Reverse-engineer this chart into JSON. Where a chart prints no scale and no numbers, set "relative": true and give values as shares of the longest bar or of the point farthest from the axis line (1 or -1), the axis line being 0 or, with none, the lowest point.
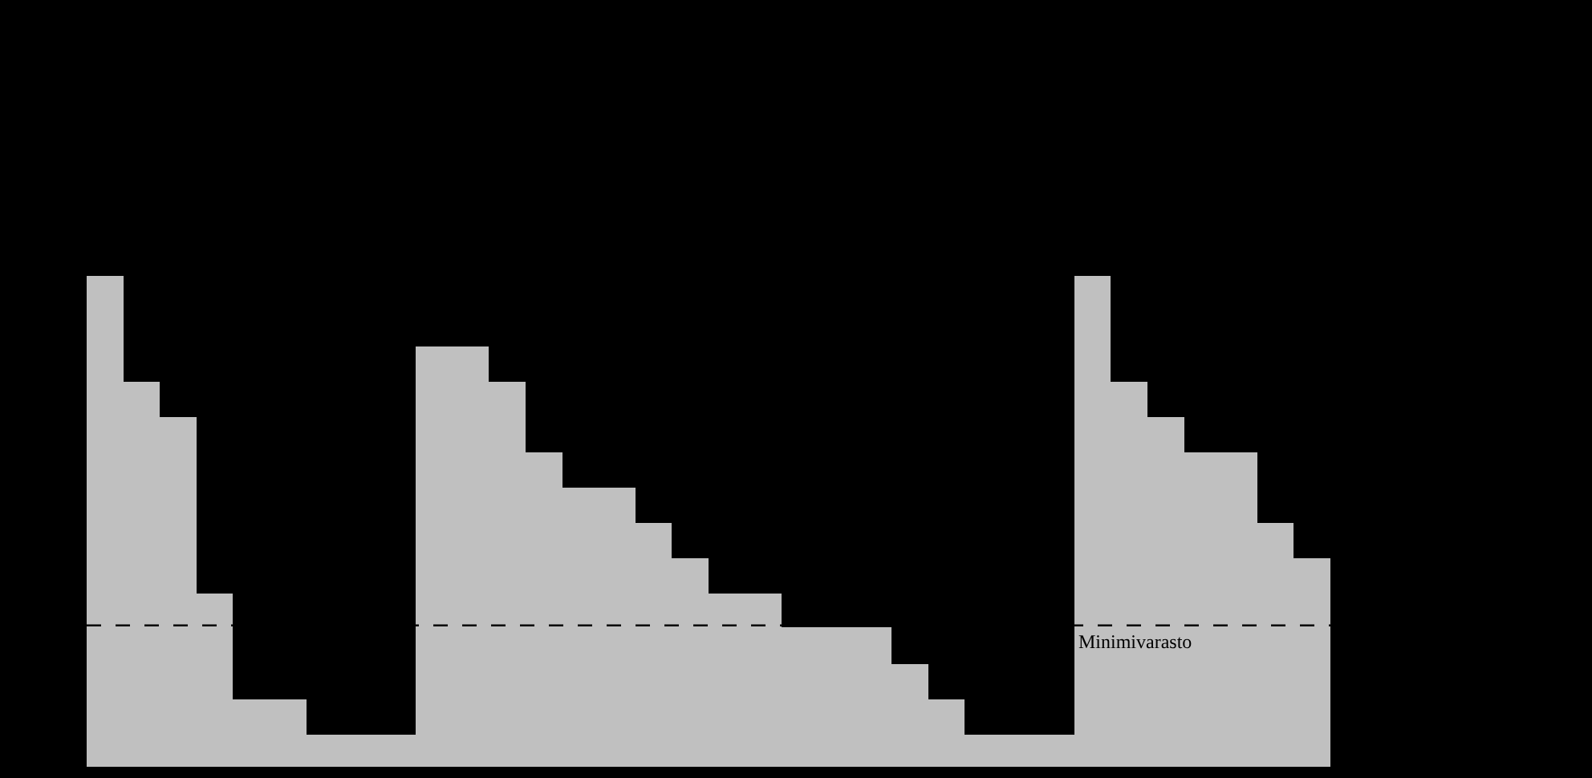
{
  "chart_data": {
    "type": "bar",
    "relative": true,
    "categories": [
      null,
      null,
      null,
      null,
      null,
      null,
      null,
      null,
      null,
      null,
      null,
      null,
      null,
      null,
      null,
      null,
      null,
      null,
      null,
      null,
      null,
      null,
      null,
      null,
      null,
      null,
      null,
      null,
      null,
      null,
      null,
      null,
      null,
      null
    ],
    "values": [
      1,
      0.784,
      0.712,
      0.353,
      0.137,
      0.137,
      0.065,
      0.065,
      0.065,
      0.856,
      0.856,
      0.784,
      0.641,
      0.569,
      0.569,
      0.497,
      0.425,
      0.353,
      0.353,
      0.284,
      0.284,
      0.284,
      0.209,
      0.137,
      0.065,
      0.065,
      0.065,
      1,
      0.784,
      0.712,
      0.641,
      0.641,
      0.497,
      0.425
    ],
    "color": "#c0c0c0",
    "ref_lines": [
      {
        "axis": "y",
        "value": 0.288,
        "label": "Minimivarasto",
        "line_style": "dashed",
        "color": "#000000"
      }
    ]
  }
}
